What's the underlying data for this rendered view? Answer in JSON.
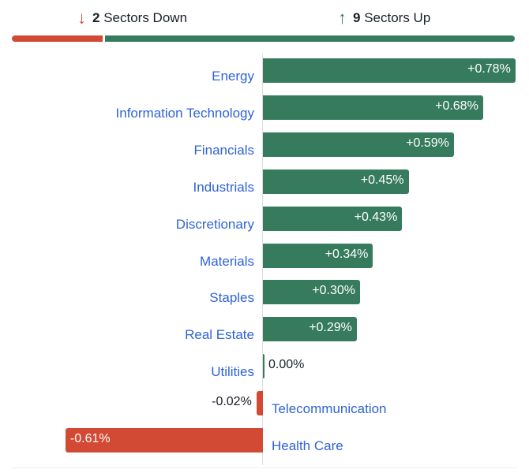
{
  "header": {
    "down_count": "2",
    "down_label": "Sectors Down",
    "up_count": "9",
    "up_label": "Sectors Up",
    "down_icon": "arrow-down-icon",
    "up_icon": "arrow-up-icon"
  },
  "colors": {
    "up": "#367b5e",
    "down": "#d24a33",
    "label": "#2f63d6",
    "text": "#1a1f2b"
  },
  "chart_data": {
    "type": "bar",
    "orientation": "horizontal",
    "categories": [
      "Energy",
      "Information Technology",
      "Financials",
      "Industrials",
      "Discretionary",
      "Materials",
      "Staples",
      "Real Estate",
      "Utilities",
      "Telecommunication",
      "Health Care"
    ],
    "values": [
      0.78,
      0.68,
      0.59,
      0.45,
      0.43,
      0.34,
      0.3,
      0.29,
      0.0,
      -0.02,
      -0.61
    ],
    "value_labels": [
      "+0.78%",
      "+0.68%",
      "+0.59%",
      "+0.45%",
      "+0.43%",
      "+0.34%",
      "+0.30%",
      "+0.29%",
      "0.00%",
      "-0.02%",
      "-0.61%"
    ],
    "unit": "%",
    "summary": {
      "down": 2,
      "up": 9
    }
  }
}
